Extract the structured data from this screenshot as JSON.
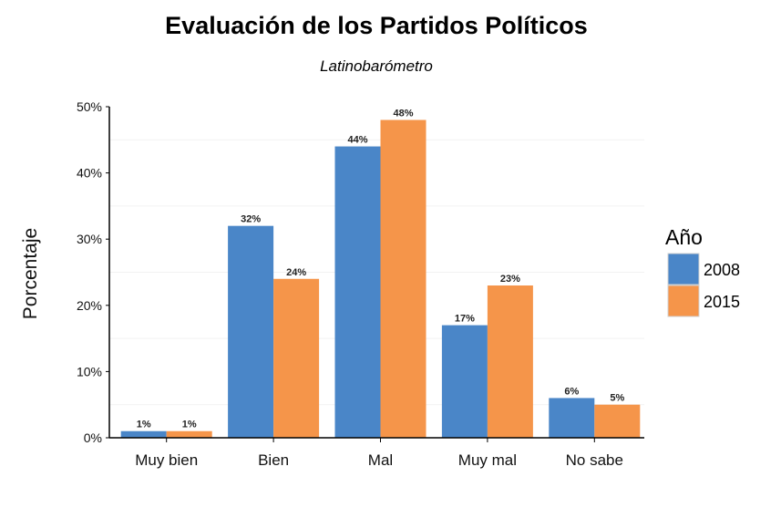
{
  "chart_data": {
    "type": "bar",
    "title": "Evaluación de los Partidos Políticos",
    "subtitle": "Latinobarómetro",
    "xlabel": "",
    "ylabel": "Porcentaje",
    "categories": [
      "Muy bien",
      "Bien",
      "Mal",
      "Muy mal",
      "No sabe"
    ],
    "series": [
      {
        "name": "2008",
        "color": "#4A86C8",
        "values": [
          1,
          32,
          44,
          17,
          6
        ],
        "labels": [
          "1%",
          "32%",
          "44%",
          "17%",
          "6%"
        ]
      },
      {
        "name": "2015",
        "color": "#F5954A",
        "values": [
          1,
          24,
          48,
          23,
          5
        ],
        "labels": [
          "1%",
          "24%",
          "48%",
          "23%",
          "5%"
        ]
      }
    ],
    "ylim": [
      0,
      50
    ],
    "yticks": [
      0,
      10,
      20,
      30,
      40,
      50
    ],
    "ytick_labels": [
      "0%",
      "10%",
      "20%",
      "30%",
      "40%",
      "50%"
    ],
    "grid": "minor-horizontal-faint",
    "legend": {
      "title": "Año",
      "position": "right"
    }
  }
}
